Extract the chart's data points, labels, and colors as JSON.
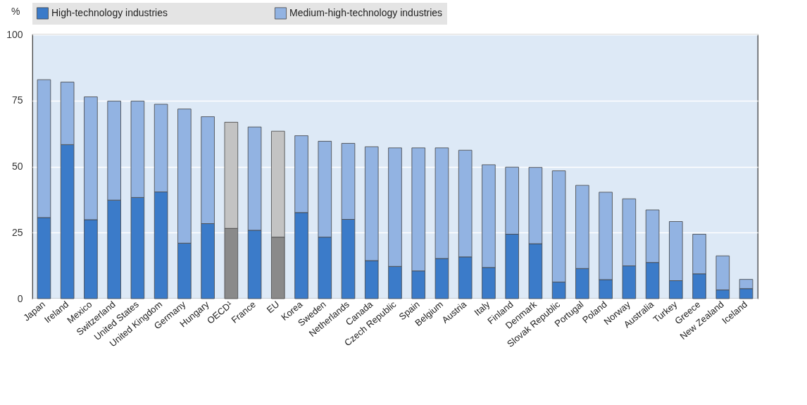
{
  "chart_data": {
    "type": "bar",
    "stacked": true,
    "ylabel": "%",
    "categories": [
      "Japan",
      "Ireland",
      "Mexico",
      "Switzerland",
      "United States",
      "United Kingdom",
      "Germany",
      "Hungary",
      "OECD¹",
      "France",
      "EU",
      "Korea",
      "Sweden",
      "Netherlands",
      "Canada",
      "Czech Republic",
      "Spain",
      "Belgium",
      "Austria",
      "Italy",
      "Finland",
      "Denmark",
      "Slovak Republic",
      "Portugal",
      "Poland",
      "Norway",
      "Australia",
      "Turkey",
      "Greece",
      "New Zealand",
      "Iceland"
    ],
    "series": [
      {
        "name": "High-technology industries",
        "color": "#3b7bc9",
        "colors": [
          "#3b7bc9",
          "#3b7bc9",
          "#3b7bc9",
          "#3b7bc9",
          "#3b7bc9",
          "#3b7bc9",
          "#3b7bc9",
          "#3b7bc9",
          "#8a8a8a",
          "#3b7bc9",
          "#8a8a8a",
          "#3b7bc9",
          "#3b7bc9",
          "#3b7bc9",
          "#3b7bc9",
          "#3b7bc9",
          "#3b7bc9",
          "#3b7bc9",
          "#3b7bc9",
          "#3b7bc9",
          "#3b7bc9",
          "#3b7bc9",
          "#3b7bc9",
          "#3b7bc9",
          "#3b7bc9",
          "#3b7bc9",
          "#3b7bc9",
          "#3b7bc9",
          "#3b7bc9",
          "#3b7bc9",
          "#3b7bc9"
        ],
        "values": [
          30.7,
          58.3,
          29.9,
          37.3,
          38.3,
          40.4,
          21.0,
          28.4,
          26.6,
          25.9,
          23.3,
          32.6,
          23.3,
          30.0,
          14.4,
          12.2,
          10.5,
          15.2,
          15.8,
          11.8,
          24.4,
          20.8,
          6.3,
          11.4,
          7.2,
          12.4,
          13.7,
          6.8,
          9.4,
          3.3,
          3.8
        ]
      },
      {
        "name": "Medium-high-technology industries",
        "color": "#92b3e2",
        "colors": [
          "#92b3e2",
          "#92b3e2",
          "#92b3e2",
          "#92b3e2",
          "#92b3e2",
          "#92b3e2",
          "#92b3e2",
          "#92b3e2",
          "#c3c3c3",
          "#92b3e2",
          "#c3c3c3",
          "#92b3e2",
          "#92b3e2",
          "#92b3e2",
          "#92b3e2",
          "#92b3e2",
          "#92b3e2",
          "#92b3e2",
          "#92b3e2",
          "#92b3e2",
          "#92b3e2",
          "#92b3e2",
          "#92b3e2",
          "#92b3e2",
          "#92b3e2",
          "#92b3e2",
          "#92b3e2",
          "#92b3e2",
          "#92b3e2",
          "#92b3e2",
          "#92b3e2"
        ],
        "values": [
          52.2,
          23.7,
          46.5,
          37.5,
          36.5,
          33.2,
          50.8,
          40.5,
          40.2,
          39.1,
          40.1,
          29.1,
          36.3,
          28.8,
          43.1,
          44.9,
          46.6,
          41.9,
          40.4,
          38.9,
          25.4,
          28.9,
          42.1,
          31.5,
          33.1,
          25.4,
          19.9,
          22.4,
          15.0,
          12.9,
          3.5
        ]
      }
    ],
    "ylim": [
      0,
      100
    ],
    "yticks": [
      0,
      25,
      50,
      75,
      100
    ],
    "grid": "y",
    "legend": "top"
  }
}
